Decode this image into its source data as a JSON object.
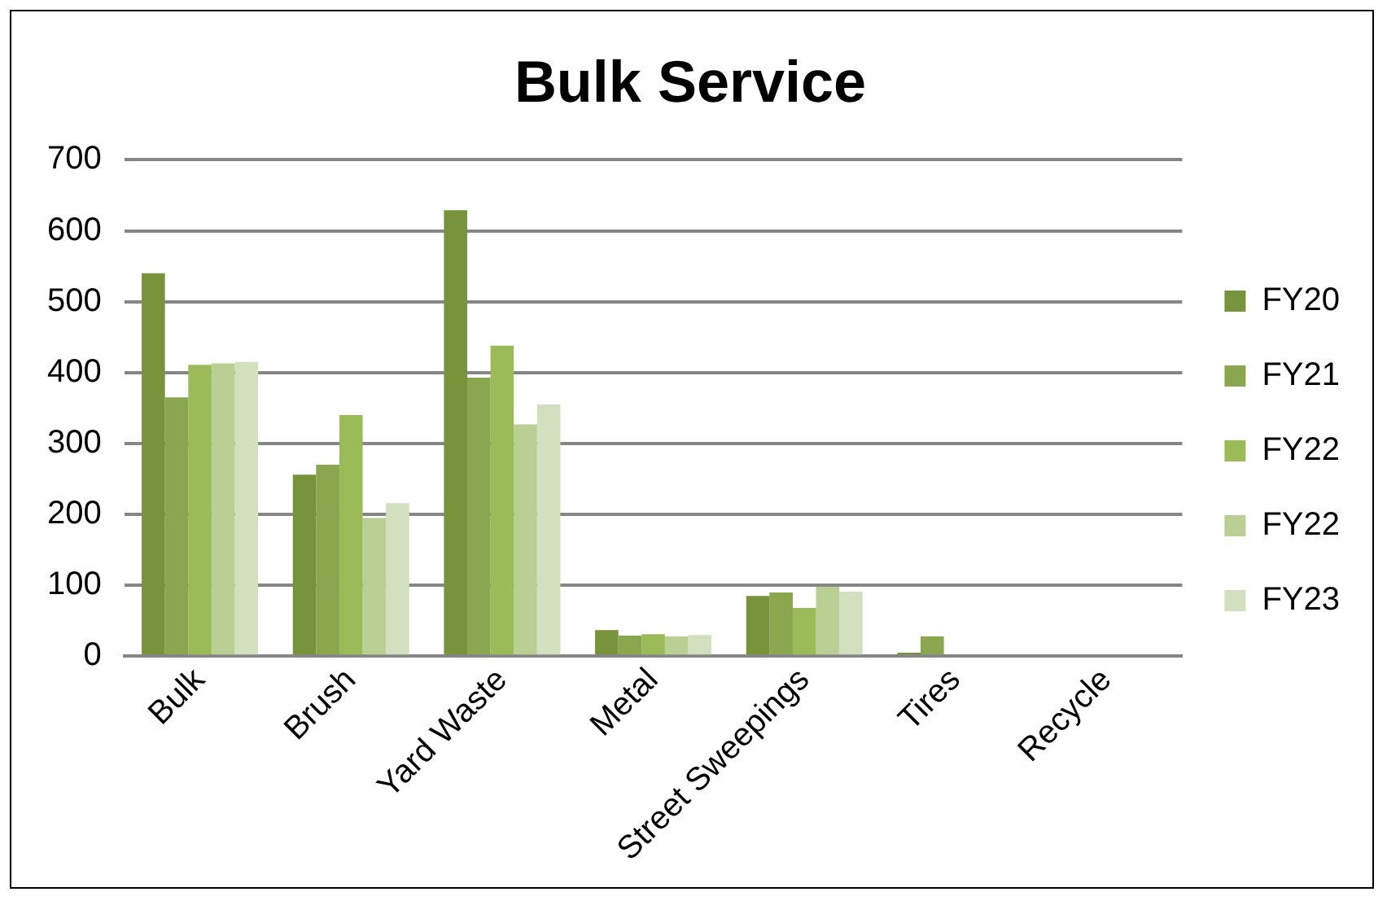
{
  "chart_data": {
    "type": "bar",
    "title": "Bulk Service",
    "categories": [
      "Bulk",
      "Brush",
      "Yard Waste",
      "Metal",
      "Street Sweepings",
      "Tires",
      "Recycle"
    ],
    "series": [
      {
        "name": "FY20",
        "color": "#77933c",
        "values": [
          540,
          256,
          629,
          37,
          85,
          5,
          0
        ]
      },
      {
        "name": "FY21",
        "color": "#8aa64e",
        "values": [
          365,
          270,
          393,
          29,
          90,
          28,
          0
        ]
      },
      {
        "name": "FY22",
        "color": "#9bbb59",
        "values": [
          411,
          340,
          438,
          31,
          68,
          0,
          0
        ]
      },
      {
        "name": "FY22",
        "color": "#b9cf94",
        "values": [
          413,
          195,
          327,
          28,
          98,
          0,
          0
        ]
      },
      {
        "name": "FY23",
        "color": "#d3e0c0",
        "values": [
          415,
          216,
          355,
          30,
          91,
          0,
          0
        ]
      }
    ],
    "ylim": [
      0,
      700
    ],
    "yticks": [
      0,
      100,
      200,
      300,
      400,
      500,
      600,
      700
    ],
    "grid": "y",
    "legend": "right"
  }
}
